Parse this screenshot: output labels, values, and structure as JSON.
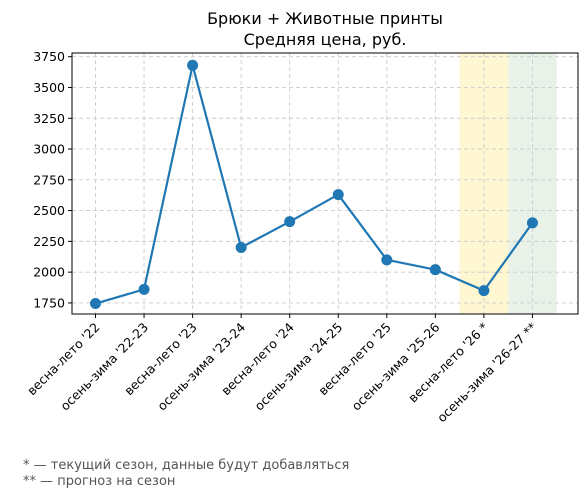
{
  "chart_data": {
    "type": "line",
    "title": [
      "Брюки + Животные принты",
      "Средняя цена, руб."
    ],
    "xlabel": "",
    "ylabel": "",
    "categories": [
      "весна-лето '22",
      "осень-зима '22-23",
      "весна-лето '23",
      "осень-зима '23-24",
      "весна-лето '24",
      "осень-зима '24-25",
      "весна-лето '25",
      "осень-зима '25-26",
      "весна-лето '26 *",
      "осень-зима '26-27 **"
    ],
    "values": [
      1745,
      1860,
      3680,
      2200,
      2410,
      2630,
      2100,
      2020,
      1850,
      2400
    ],
    "ylim": [
      1660,
      3780
    ],
    "yticks": [
      1750,
      2000,
      2250,
      2500,
      2750,
      3000,
      3250,
      3500,
      3750
    ],
    "grid": true,
    "line_color": "#1f77b4",
    "highlight_bands": [
      {
        "category": "весна-лето '26 *",
        "color": "#fff2b3",
        "meaning": "current season"
      },
      {
        "category": "осень-зима '26-27 **",
        "color": "#d9ead9",
        "meaning": "forecast"
      }
    ],
    "footnotes": [
      "* — текущий сезон, данные будут добавляться",
      "** — прогноз на сезон"
    ]
  }
}
